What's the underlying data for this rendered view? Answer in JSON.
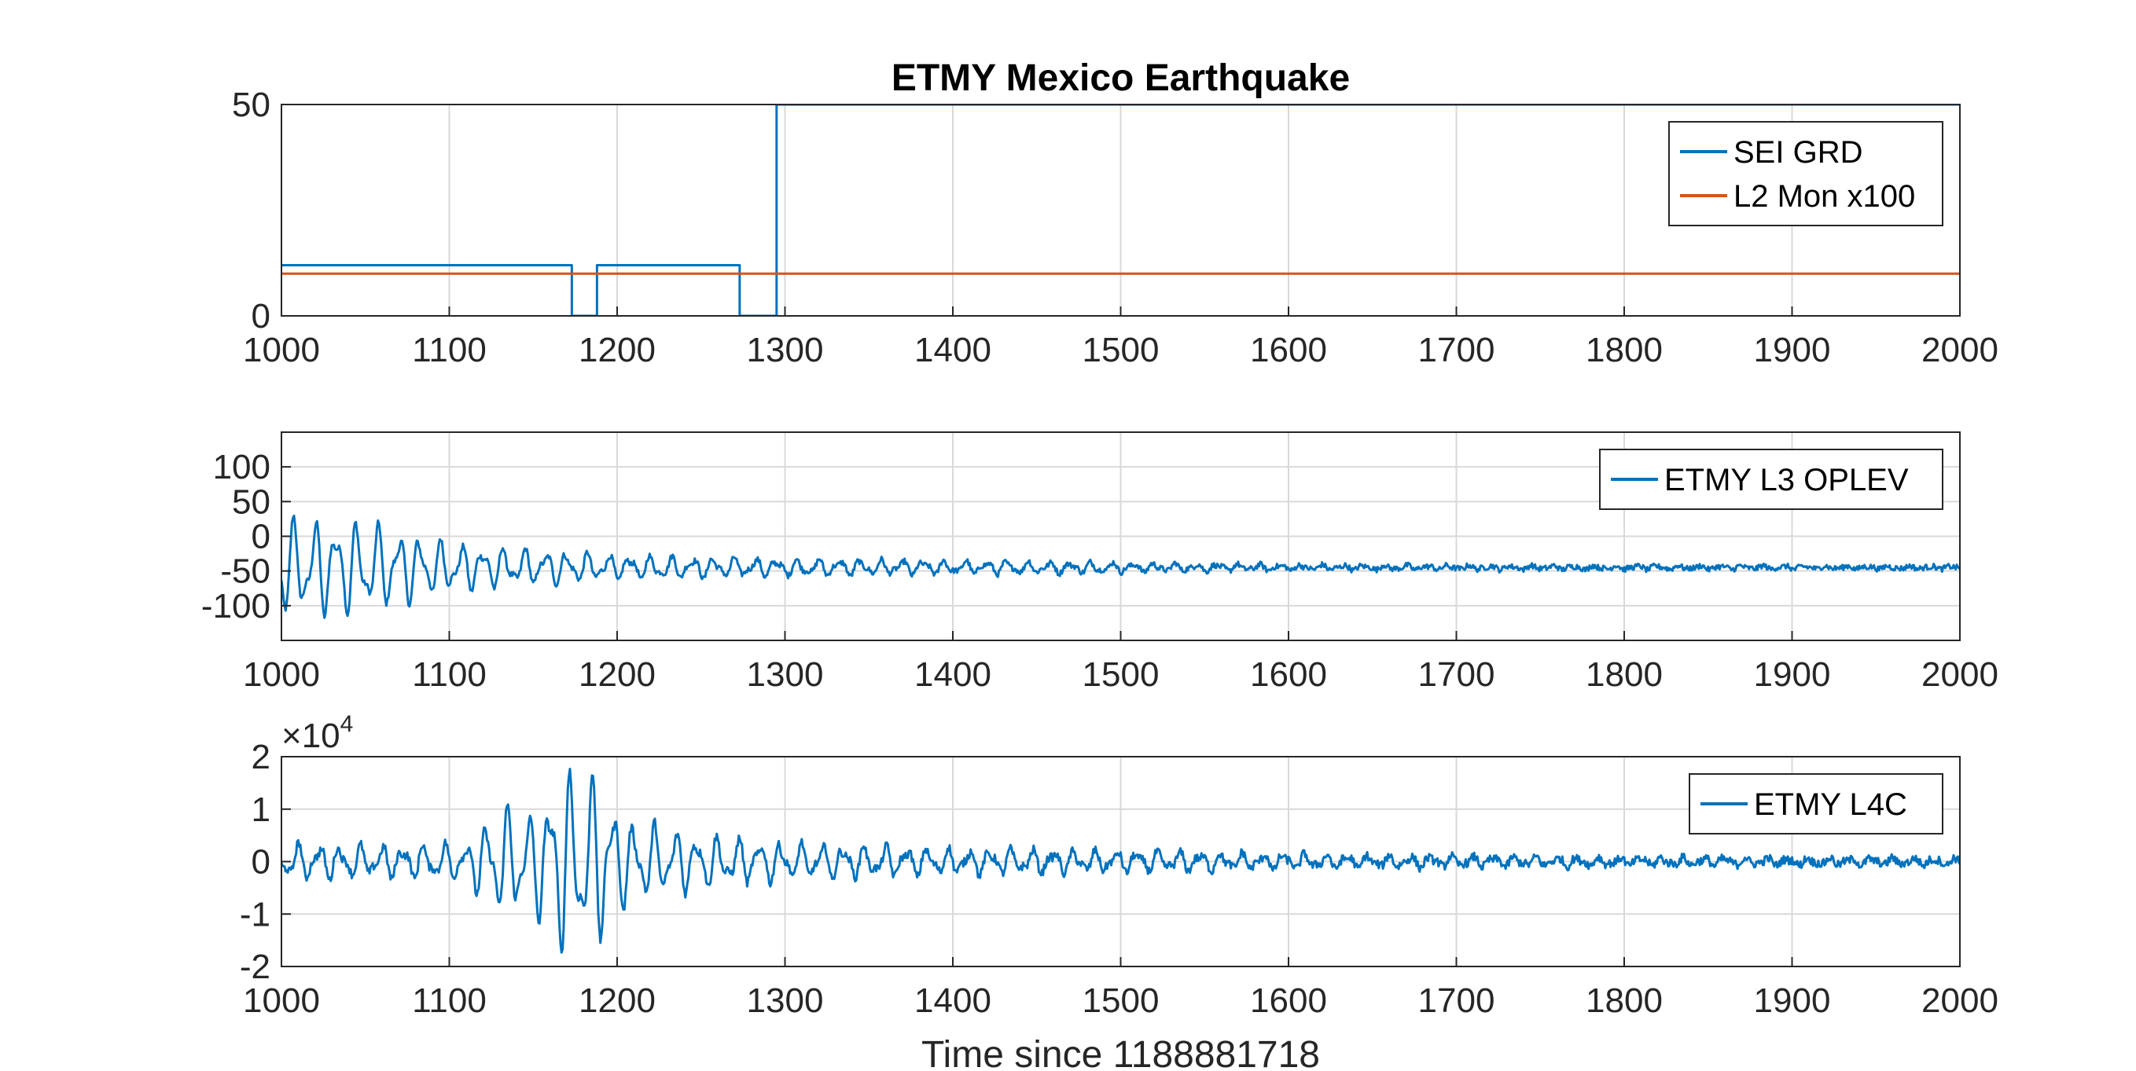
{
  "chart_data": [
    {
      "type": "line",
      "title": "ETMY Mexico Earthquake",
      "xlabel": "",
      "ylabel": "",
      "xlim": [
        1000,
        2000
      ],
      "ylim": [
        0,
        50
      ],
      "xticks": [
        1000,
        1100,
        1200,
        1300,
        1400,
        1500,
        1600,
        1700,
        1800,
        1900,
        2000
      ],
      "yticks": [
        0,
        50
      ],
      "grid": true,
      "legend_position": "top-right",
      "series": [
        {
          "name": "SEI GRD",
          "color": "#0072BD",
          "style": "step",
          "x": [
            1000,
            1173,
            1173,
            1188,
            1188,
            1273,
            1273,
            1295,
            1295,
            2000
          ],
          "y": [
            12,
            12,
            0,
            0,
            12,
            12,
            0,
            0,
            50,
            50
          ]
        },
        {
          "name": "L2 Mon x100",
          "color": "#D95319",
          "x": [
            1000,
            2000
          ],
          "y": [
            10,
            10
          ]
        }
      ]
    },
    {
      "type": "line",
      "title": "",
      "xlabel": "",
      "ylabel": "",
      "xlim": [
        1000,
        2000
      ],
      "ylim": [
        -150,
        150
      ],
      "xticks": [
        1000,
        1100,
        1200,
        1300,
        1400,
        1500,
        1600,
        1700,
        1800,
        1900,
        2000
      ],
      "yticks": [
        -100,
        -50,
        0,
        50,
        100
      ],
      "ytick_labels": [
        "-100",
        "-50",
        "0",
        "50",
        "100"
      ],
      "grid": true,
      "legend_position": "top-right",
      "series": [
        {
          "name": "ETMY L3 OPLEV",
          "color": "#0072BD",
          "signal": {
            "baseline": -45,
            "noise": 4,
            "envelope_points": [
              [
                1000,
                70
              ],
              [
                1050,
                65
              ],
              [
                1100,
                35
              ],
              [
                1150,
                25
              ],
              [
                1200,
                18
              ],
              [
                1300,
                12
              ],
              [
                1400,
                10
              ],
              [
                1500,
                7
              ],
              [
                1600,
                4
              ],
              [
                1700,
                3
              ],
              [
                1800,
                3
              ],
              [
                1900,
                2.5
              ],
              [
                2000,
                2
              ]
            ]
          }
        }
      ]
    },
    {
      "type": "line",
      "title": "",
      "xlabel": "Time since 1188881718",
      "ylabel": "",
      "xlim": [
        1000,
        2000
      ],
      "ylim": [
        -2,
        2
      ],
      "y_exponent": 4,
      "y_exponent_label": "×10",
      "xticks": [
        1000,
        1100,
        1200,
        1300,
        1400,
        1500,
        1600,
        1700,
        1800,
        1900,
        2000
      ],
      "yticks": [
        -2,
        -1,
        0,
        1,
        2
      ],
      "ytick_labels": [
        "-2",
        "-1",
        "0",
        "1",
        "2"
      ],
      "grid": true,
      "legend_position": "top-right",
      "series": [
        {
          "name": "ETMY L4C",
          "color": "#0072BD",
          "signal": {
            "baseline": 0,
            "noise": 0.08,
            "envelope_points": [
              [
                1000,
                0.35
              ],
              [
                1050,
                0.3
              ],
              [
                1110,
                0.35
              ],
              [
                1130,
                1.05
              ],
              [
                1150,
                0.9
              ],
              [
                1165,
                1.75
              ],
              [
                1175,
                1.7
              ],
              [
                1190,
                1.6
              ],
              [
                1205,
                0.8
              ],
              [
                1250,
                0.5
              ],
              [
                1300,
                0.35
              ],
              [
                1400,
                0.25
              ],
              [
                1500,
                0.2
              ],
              [
                1600,
                0.15
              ],
              [
                1700,
                0.1
              ],
              [
                1800,
                0.08
              ],
              [
                1900,
                0.07
              ],
              [
                2000,
                0.07
              ]
            ]
          }
        }
      ]
    }
  ]
}
